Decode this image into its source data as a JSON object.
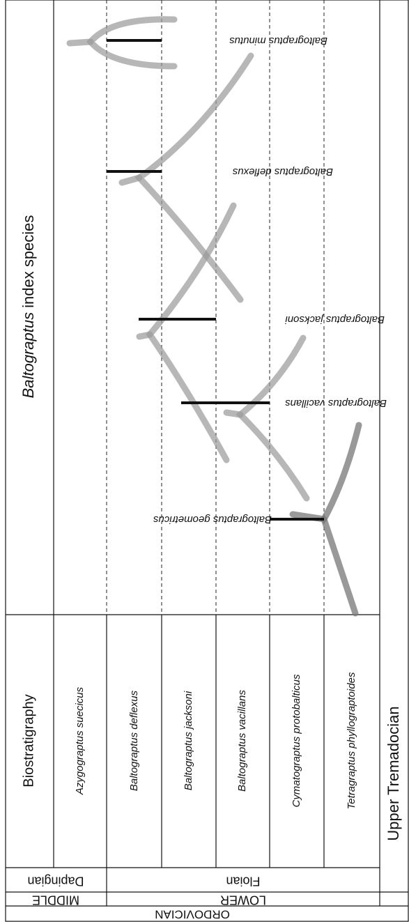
{
  "index_panel": {
    "title_italic": "Baltograptus",
    "title_rest": "index species",
    "species": [
      "Baltograptus minutus",
      "Baltograptus deflexus",
      "Baltograptus jacksoni",
      "Baltograptus vacillans",
      "Baltograptus geometricus"
    ]
  },
  "biostratigraphy": {
    "header": "Biostratigraphy",
    "zones": [
      "Azygograptus suecicus",
      "Baltograptus deflexus",
      "Baltograptus jacksoni",
      "Baltograptus vacillans",
      "Cymatograptus protobalticus",
      "Tetragraptus phyllograptoides"
    ]
  },
  "stages": [
    "Dapingian",
    "Floian",
    "Upper Tremadocian"
  ],
  "series": [
    "MIDDLE",
    "LOWER"
  ],
  "system": "ORDOVICIAN"
}
